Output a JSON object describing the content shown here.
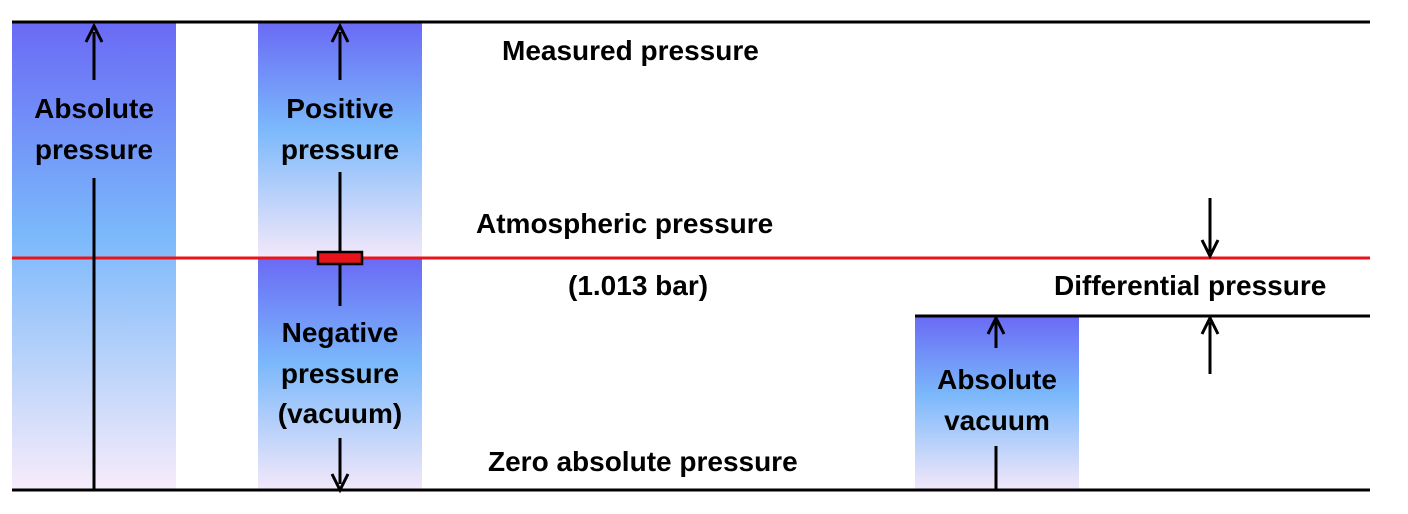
{
  "levels": {
    "measured": "Measured pressure",
    "atmospheric": "Atmospheric pressure",
    "atmospheric_value": "(1.013 bar)",
    "zero": "Zero absolute pressure",
    "differential": "Differential pressure"
  },
  "columns": {
    "absolute_pressure": [
      "Absolute",
      "pressure"
    ],
    "positive_pressure": [
      "Positive",
      "pressure"
    ],
    "negative_pressure": [
      "Negative",
      "pressure",
      "(vacuum)"
    ],
    "absolute_vacuum": [
      "Absolute",
      "vacuum"
    ]
  },
  "colors": {
    "gradient_top": "#6a6af5",
    "gradient_mid": "#7ab8fb",
    "gradient_bottom": "#f7ecfa",
    "atmospheric_line": "#e8141b",
    "line": "#000000"
  }
}
